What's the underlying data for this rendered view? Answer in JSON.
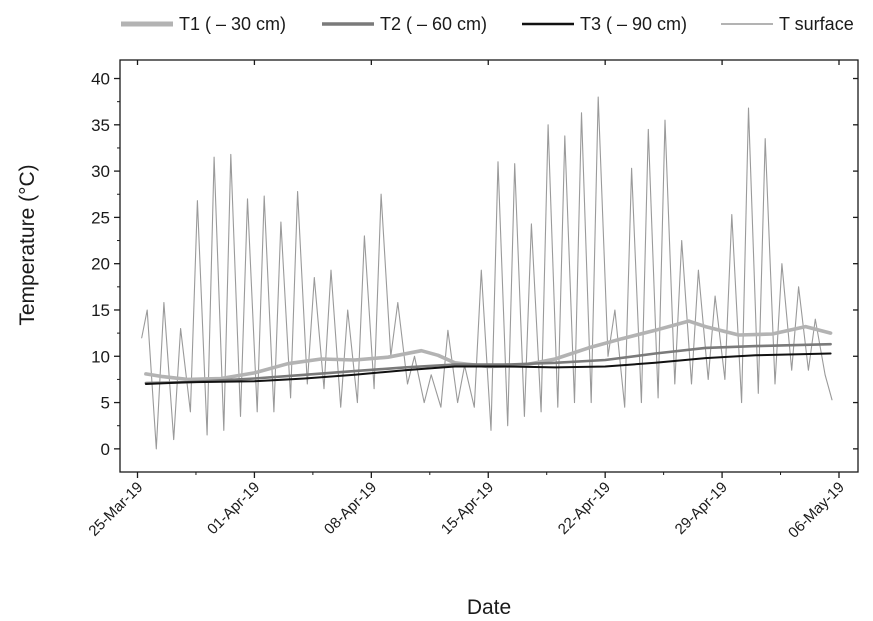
{
  "chart_data": {
    "type": "line",
    "title": "",
    "xlabel": "Date",
    "ylabel": "Temperature (°C)",
    "xlim": [
      "2019-03-25",
      "2019-05-06"
    ],
    "ylim": [
      -2.5,
      42
    ],
    "x_ticks": [
      "25-Mar-19",
      "01-Apr-19",
      "08-Apr-19",
      "15-Apr-19",
      "22-Apr-19",
      "29-Apr-19",
      "06-May-19"
    ],
    "y_ticks": [
      "0",
      "5",
      "10",
      "15",
      "20",
      "25",
      "30",
      "35",
      "40"
    ],
    "grid": false,
    "legend_placement": "top",
    "series": [
      {
        "name": "T1 ( – 30 cm)",
        "color": "#b3b3b3",
        "points": [
          [
            "2019-03-25T12:00",
            8.1
          ],
          [
            "2019-03-26T12:00",
            7.8
          ],
          [
            "2019-03-28T00:00",
            7.5
          ],
          [
            "2019-03-30T00:00",
            7.6
          ],
          [
            "2019-04-01T00:00",
            8.2
          ],
          [
            "2019-04-03T00:00",
            9.2
          ],
          [
            "2019-04-05T00:00",
            9.7
          ],
          [
            "2019-04-07T00:00",
            9.6
          ],
          [
            "2019-04-09T00:00",
            9.9
          ],
          [
            "2019-04-11T00:00",
            10.6
          ],
          [
            "2019-04-12T00:00",
            10.1
          ],
          [
            "2019-04-13T00:00",
            9.3
          ],
          [
            "2019-04-15T00:00",
            8.9
          ],
          [
            "2019-04-17T00:00",
            9.0
          ],
          [
            "2019-04-19T00:00",
            9.7
          ],
          [
            "2019-04-21T00:00",
            10.9
          ],
          [
            "2019-04-23T00:00",
            11.9
          ],
          [
            "2019-04-25T00:00",
            12.8
          ],
          [
            "2019-04-27T00:00",
            13.8
          ],
          [
            "2019-04-28T00:00",
            13.2
          ],
          [
            "2019-04-30T00:00",
            12.3
          ],
          [
            "2019-05-02T00:00",
            12.4
          ],
          [
            "2019-05-04T00:00",
            13.2
          ],
          [
            "2019-05-05T12:00",
            12.5
          ]
        ]
      },
      {
        "name": "T2 ( – 60 cm)",
        "color": "#7a7a7a",
        "points": [
          [
            "2019-03-25T12:00",
            7.1
          ],
          [
            "2019-03-28T00:00",
            7.2
          ],
          [
            "2019-04-01T00:00",
            7.6
          ],
          [
            "2019-04-04T00:00",
            8.0
          ],
          [
            "2019-04-07T00:00",
            8.4
          ],
          [
            "2019-04-10T00:00",
            8.8
          ],
          [
            "2019-04-13T00:00",
            9.1
          ],
          [
            "2019-04-16T00:00",
            9.1
          ],
          [
            "2019-04-19T00:00",
            9.3
          ],
          [
            "2019-04-22T00:00",
            9.6
          ],
          [
            "2019-04-25T00:00",
            10.3
          ],
          [
            "2019-04-28T00:00",
            10.9
          ],
          [
            "2019-05-01T00:00",
            11.1
          ],
          [
            "2019-05-05T12:00",
            11.3
          ]
        ]
      },
      {
        "name": "T3 ( – 90 cm)",
        "color": "#111111",
        "points": [
          [
            "2019-03-25T12:00",
            7.0
          ],
          [
            "2019-03-28T00:00",
            7.2
          ],
          [
            "2019-04-01T00:00",
            7.3
          ],
          [
            "2019-04-04T00:00",
            7.6
          ],
          [
            "2019-04-07T00:00",
            8.0
          ],
          [
            "2019-04-10T00:00",
            8.5
          ],
          [
            "2019-04-13T00:00",
            8.9
          ],
          [
            "2019-04-16T00:00",
            8.9
          ],
          [
            "2019-04-19T00:00",
            8.8
          ],
          [
            "2019-04-22T00:00",
            8.9
          ],
          [
            "2019-04-25T00:00",
            9.3
          ],
          [
            "2019-04-28T00:00",
            9.8
          ],
          [
            "2019-05-01T00:00",
            10.1
          ],
          [
            "2019-05-05T12:00",
            10.3
          ]
        ]
      },
      {
        "name": "T surface",
        "color": "#9a9a9a",
        "points": [
          [
            "2019-03-25T06:00",
            12.0
          ],
          [
            "2019-03-25T14:00",
            15.0
          ],
          [
            "2019-03-26T03:00",
            0.0
          ],
          [
            "2019-03-26T14:00",
            15.8
          ],
          [
            "2019-03-27T04:00",
            1.0
          ],
          [
            "2019-03-27T14:00",
            13.0
          ],
          [
            "2019-03-28T04:00",
            4.0
          ],
          [
            "2019-03-28T14:00",
            26.8
          ],
          [
            "2019-03-29T04:00",
            1.5
          ],
          [
            "2019-03-29T14:00",
            31.5
          ],
          [
            "2019-03-30T04:00",
            2.0
          ],
          [
            "2019-03-30T14:00",
            31.8
          ],
          [
            "2019-03-31T04:00",
            3.5
          ],
          [
            "2019-03-31T14:00",
            27.0
          ],
          [
            "2019-04-01T04:00",
            4.0
          ],
          [
            "2019-04-01T14:00",
            27.3
          ],
          [
            "2019-04-02T04:00",
            4.0
          ],
          [
            "2019-04-02T14:00",
            24.5
          ],
          [
            "2019-04-03T04:00",
            5.5
          ],
          [
            "2019-04-03T14:00",
            27.8
          ],
          [
            "2019-04-04T04:00",
            7.0
          ],
          [
            "2019-04-04T14:00",
            18.5
          ],
          [
            "2019-04-05T04:00",
            6.5
          ],
          [
            "2019-04-05T14:00",
            19.3
          ],
          [
            "2019-04-06T04:00",
            4.5
          ],
          [
            "2019-04-06T14:00",
            15.0
          ],
          [
            "2019-04-07T04:00",
            5.0
          ],
          [
            "2019-04-07T14:00",
            23.0
          ],
          [
            "2019-04-08T04:00",
            6.5
          ],
          [
            "2019-04-08T14:00",
            27.5
          ],
          [
            "2019-04-09T04:00",
            10.0
          ],
          [
            "2019-04-09T14:00",
            15.8
          ],
          [
            "2019-04-10T04:00",
            7.0
          ],
          [
            "2019-04-10T14:00",
            10.0
          ],
          [
            "2019-04-11T04:00",
            5.0
          ],
          [
            "2019-04-11T14:00",
            8.0
          ],
          [
            "2019-04-12T04:00",
            4.5
          ],
          [
            "2019-04-12T14:00",
            12.8
          ],
          [
            "2019-04-13T04:00",
            5.0
          ],
          [
            "2019-04-13T14:00",
            9.0
          ],
          [
            "2019-04-14T04:00",
            4.5
          ],
          [
            "2019-04-14T14:00",
            19.3
          ],
          [
            "2019-04-15T04:00",
            2.0
          ],
          [
            "2019-04-15T14:00",
            31.0
          ],
          [
            "2019-04-16T04:00",
            2.5
          ],
          [
            "2019-04-16T14:00",
            30.8
          ],
          [
            "2019-04-17T04:00",
            3.5
          ],
          [
            "2019-04-17T14:00",
            24.3
          ],
          [
            "2019-04-18T04:00",
            4.0
          ],
          [
            "2019-04-18T14:00",
            35.0
          ],
          [
            "2019-04-19T04:00",
            4.5
          ],
          [
            "2019-04-19T14:00",
            33.8
          ],
          [
            "2019-04-20T04:00",
            5.0
          ],
          [
            "2019-04-20T14:00",
            36.3
          ],
          [
            "2019-04-21T04:00",
            5.0
          ],
          [
            "2019-04-21T14:00",
            38.0
          ],
          [
            "2019-04-22T04:00",
            10.0
          ],
          [
            "2019-04-22T14:00",
            15.0
          ],
          [
            "2019-04-23T04:00",
            4.5
          ],
          [
            "2019-04-23T14:00",
            30.3
          ],
          [
            "2019-04-24T04:00",
            5.0
          ],
          [
            "2019-04-24T14:00",
            34.5
          ],
          [
            "2019-04-25T04:00",
            5.5
          ],
          [
            "2019-04-25T14:00",
            35.5
          ],
          [
            "2019-04-26T04:00",
            7.0
          ],
          [
            "2019-04-26T14:00",
            22.5
          ],
          [
            "2019-04-27T04:00",
            7.0
          ],
          [
            "2019-04-27T14:00",
            19.3
          ],
          [
            "2019-04-28T04:00",
            7.5
          ],
          [
            "2019-04-28T14:00",
            16.5
          ],
          [
            "2019-04-29T04:00",
            7.5
          ],
          [
            "2019-04-29T14:00",
            25.3
          ],
          [
            "2019-04-30T04:00",
            5.0
          ],
          [
            "2019-04-30T14:00",
            36.8
          ],
          [
            "2019-05-01T04:00",
            6.0
          ],
          [
            "2019-05-01T14:00",
            33.5
          ],
          [
            "2019-05-02T04:00",
            7.0
          ],
          [
            "2019-05-02T14:00",
            20.0
          ],
          [
            "2019-05-03T04:00",
            8.5
          ],
          [
            "2019-05-03T14:00",
            17.5
          ],
          [
            "2019-05-04T04:00",
            8.5
          ],
          [
            "2019-05-04T14:00",
            14.0
          ],
          [
            "2019-05-05T04:00",
            8.0
          ],
          [
            "2019-05-05T14:00",
            5.3
          ]
        ]
      }
    ]
  }
}
